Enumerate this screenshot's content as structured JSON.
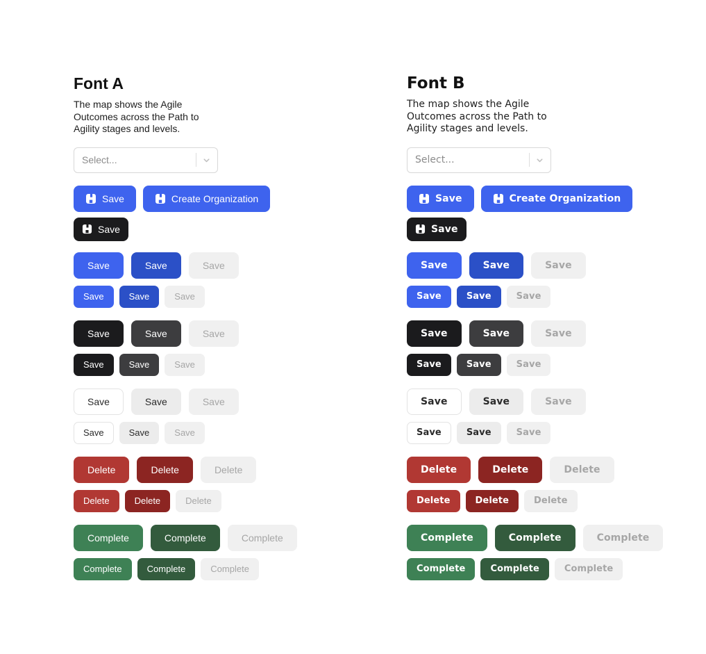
{
  "columns": [
    {
      "heading": "Font A",
      "description": "The map shows the Agile Outcomes across the Path to Agility stages and levels."
    },
    {
      "heading": "Font B",
      "description": "The map shows the Agile Outcomes across the Path to Agility stages and levels."
    }
  ],
  "select": {
    "placeholder": "Select..."
  },
  "toolbar": {
    "save_label": "Save",
    "create_organization_label": "Create Organization"
  },
  "button_groups": [
    {
      "variant": "primary",
      "label": "Save"
    },
    {
      "variant": "dark",
      "label": "Save"
    },
    {
      "variant": "light",
      "label": "Save"
    },
    {
      "variant": "danger",
      "label": "Delete"
    },
    {
      "variant": "success",
      "label": "Complete"
    }
  ],
  "sizes": [
    "lg",
    "sm"
  ],
  "states": [
    "normal",
    "hover",
    "disabled"
  ],
  "colors": {
    "primary": "#3E63EE",
    "primary_hover": "#2B50C7",
    "dark": "#1B1B1D",
    "dark_hover": "#3D3D3F",
    "light": "#FFFFFF",
    "light_hover": "#ECECEC",
    "light_border": "#E3E3E3",
    "light_text": "#2B2B2B",
    "danger": "#B13833",
    "danger_hover": "#8C2522",
    "success": "#3E8155",
    "success_hover": "#335B3D",
    "disabled_bg": "#F0F0F0",
    "disabled_text": "#A6A6A6"
  }
}
